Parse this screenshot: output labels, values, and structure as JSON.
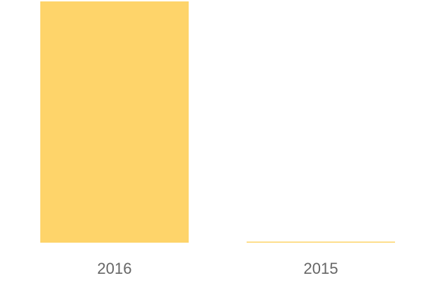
{
  "chart_data": {
    "type": "bar",
    "categories": [
      "2016",
      "2015"
    ],
    "values": [
      100,
      0.4
    ],
    "ylim": [
      0,
      100
    ],
    "grid": false,
    "bar_color": "#FED46A",
    "tick_color": "#666666"
  }
}
